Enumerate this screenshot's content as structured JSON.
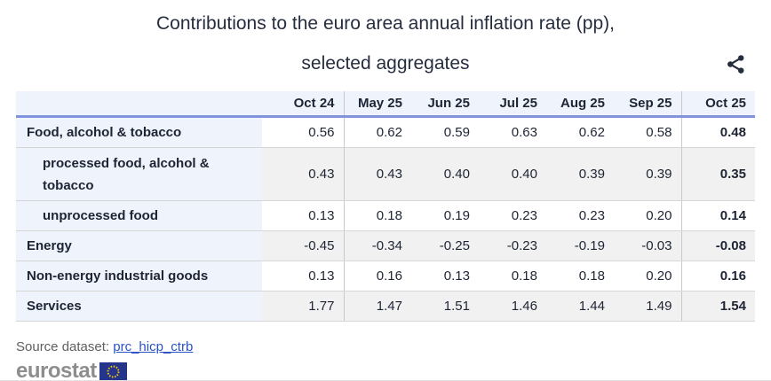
{
  "title": {
    "line1": "Contributions to the euro area annual inflation rate (pp),",
    "line2": "selected aggregates"
  },
  "toolbar": {
    "share_icon": "share-icon"
  },
  "table": {
    "columns": [
      "Oct 24",
      "May 25",
      "Jun 25",
      "Jul 25",
      "Aug 25",
      "Sep 25",
      "Oct 25"
    ],
    "rows": [
      {
        "label": "Food, alcohol & tobacco",
        "indent": false,
        "values": [
          "0.56",
          "0.62",
          "0.59",
          "0.63",
          "0.62",
          "0.58",
          "0.48"
        ]
      },
      {
        "label": "processed food, alcohol & tobacco",
        "indent": true,
        "values": [
          "0.43",
          "0.43",
          "0.40",
          "0.40",
          "0.39",
          "0.39",
          "0.35"
        ]
      },
      {
        "label": "unprocessed food",
        "indent": true,
        "values": [
          "0.13",
          "0.18",
          "0.19",
          "0.23",
          "0.23",
          "0.20",
          "0.14"
        ]
      },
      {
        "label": "Energy",
        "indent": false,
        "values": [
          "-0.45",
          "-0.34",
          "-0.25",
          "-0.23",
          "-0.19",
          "-0.03",
          "-0.08"
        ]
      },
      {
        "label": "Non-energy industrial goods",
        "indent": false,
        "values": [
          "0.13",
          "0.16",
          "0.13",
          "0.18",
          "0.18",
          "0.20",
          "0.16"
        ]
      },
      {
        "label": "Services",
        "indent": false,
        "values": [
          "1.77",
          "1.47",
          "1.51",
          "1.46",
          "1.44",
          "1.49",
          "1.54"
        ]
      }
    ]
  },
  "source": {
    "label": "Source dataset:",
    "link_text": "prc_hicp_ctrb"
  },
  "footer": {
    "logo_text": "eurostat"
  },
  "colors": {
    "header_accent": "#8193da",
    "header_bg": "#eff3fc",
    "stripe_bg": "#f1f1f1",
    "text": "#1d2433",
    "link": "#2a52c8",
    "source_text": "#5f5f5f",
    "logo_gray": "#8d8d8d",
    "flag_blue": "#26358c",
    "star_yellow": "#ffcc00"
  },
  "chart_data": {
    "type": "table",
    "title": "Contributions to the euro area annual inflation rate (pp), selected aggregates",
    "categories": [
      "Oct 24",
      "May 25",
      "Jun 25",
      "Jul 25",
      "Aug 25",
      "Sep 25",
      "Oct 25"
    ],
    "series": [
      {
        "name": "Food, alcohol & tobacco",
        "values": [
          0.56,
          0.62,
          0.59,
          0.63,
          0.62,
          0.58,
          0.48
        ]
      },
      {
        "name": "processed food, alcohol & tobacco",
        "values": [
          0.43,
          0.43,
          0.4,
          0.4,
          0.39,
          0.39,
          0.35
        ]
      },
      {
        "name": "unprocessed food",
        "values": [
          0.13,
          0.18,
          0.19,
          0.23,
          0.23,
          0.2,
          0.14
        ]
      },
      {
        "name": "Energy",
        "values": [
          -0.45,
          -0.34,
          -0.25,
          -0.23,
          -0.19,
          -0.03,
          -0.08
        ]
      },
      {
        "name": "Non-energy industrial goods",
        "values": [
          0.13,
          0.16,
          0.13,
          0.18,
          0.18,
          0.2,
          0.16
        ]
      },
      {
        "name": "Services",
        "values": [
          1.77,
          1.47,
          1.51,
          1.46,
          1.44,
          1.49,
          1.54
        ]
      }
    ],
    "unit": "percentage points",
    "source_dataset": "prc_hicp_ctrb"
  }
}
